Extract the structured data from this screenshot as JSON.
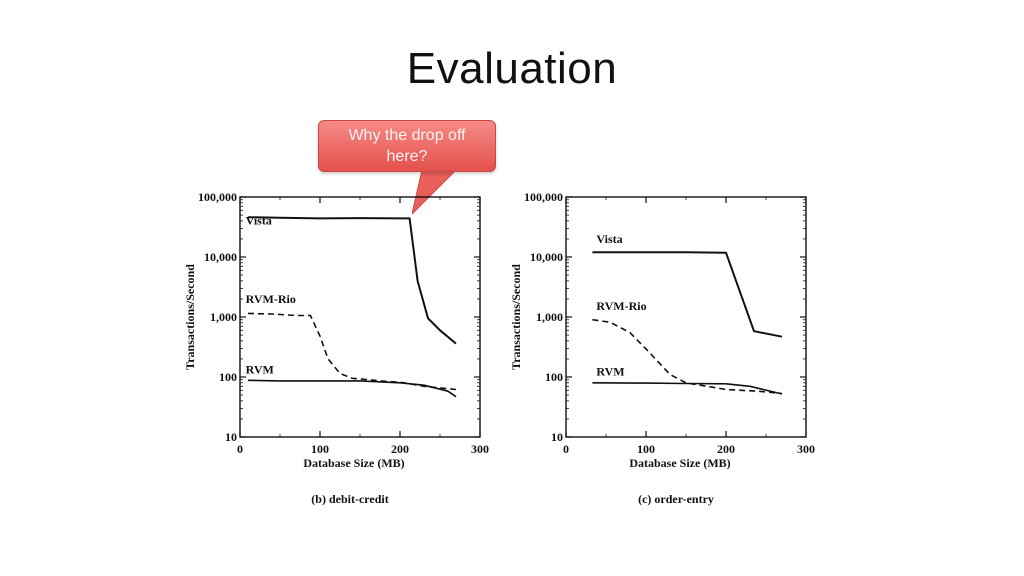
{
  "slide": {
    "title": "Evaluation"
  },
  "callout": {
    "text_line1": "Why the drop off",
    "text_line2": "here?"
  },
  "chart_data": [
    {
      "type": "line",
      "caption": "(b) debit-credit",
      "xlabel": "Database Size (MB)",
      "ylabel": "Transactions/Second",
      "xlim": [
        0,
        300
      ],
      "ylim": [
        10,
        100000
      ],
      "yscale": "log",
      "x_ticks": [
        0,
        100,
        200,
        300
      ],
      "y_ticks": [
        10,
        100,
        1000,
        10000,
        100000
      ],
      "y_tick_labels": [
        "10",
        "100",
        "1,000",
        "10,000",
        "100,000"
      ],
      "grid": false,
      "series": [
        {
          "name": "Vista",
          "style": "solid",
          "label_pos": [
            2,
            35000
          ],
          "x": [
            10,
            50,
            100,
            150,
            200,
            212,
            222,
            235,
            250,
            270
          ],
          "y": [
            46000,
            45000,
            44000,
            44500,
            44000,
            44000,
            4000,
            950,
            600,
            360
          ]
        },
        {
          "name": "RVM-Rio",
          "style": "dashed",
          "label_pos": [
            2,
            1700
          ],
          "x": [
            10,
            40,
            70,
            88,
            100,
            110,
            125,
            140,
            160,
            180,
            200,
            230,
            270
          ],
          "y": [
            1150,
            1120,
            1060,
            1060,
            480,
            200,
            115,
            95,
            90,
            85,
            82,
            70,
            62
          ]
        },
        {
          "name": "RVM",
          "style": "solid",
          "label_pos": [
            2,
            115
          ],
          "x": [
            10,
            50,
            100,
            150,
            200,
            230,
            260,
            270
          ],
          "y": [
            88,
            86,
            86,
            86,
            80,
            73,
            58,
            47
          ]
        }
      ]
    },
    {
      "type": "line",
      "caption": "(c) order-entry",
      "xlabel": "Database Size (MB)",
      "ylabel": "Transactions/Second",
      "xlim": [
        0,
        300
      ],
      "ylim": [
        10,
        100000
      ],
      "yscale": "log",
      "x_ticks": [
        0,
        100,
        200,
        300
      ],
      "y_ticks": [
        10,
        100,
        1000,
        10000,
        100000
      ],
      "y_tick_labels": [
        "10",
        "100",
        "1,000",
        "10,000",
        "100,000"
      ],
      "grid": false,
      "series": [
        {
          "name": "Vista",
          "style": "solid",
          "label_pos": [
            33,
            17000
          ],
          "x": [
            33,
            100,
            150,
            200,
            235,
            270
          ],
          "y": [
            12000,
            12000,
            12000,
            11800,
            580,
            470
          ]
        },
        {
          "name": "RVM-Rio",
          "style": "dashed",
          "label_pos": [
            33,
            1300
          ],
          "x": [
            33,
            55,
            80,
            105,
            130,
            150,
            200,
            240,
            270
          ],
          "y": [
            900,
            820,
            550,
            250,
            110,
            80,
            62,
            58,
            53
          ]
        },
        {
          "name": "RVM",
          "style": "solid",
          "label_pos": [
            33,
            105
          ],
          "x": [
            33,
            100,
            150,
            200,
            230,
            270
          ],
          "y": [
            80,
            79,
            78,
            77,
            70,
            52
          ]
        }
      ]
    }
  ]
}
